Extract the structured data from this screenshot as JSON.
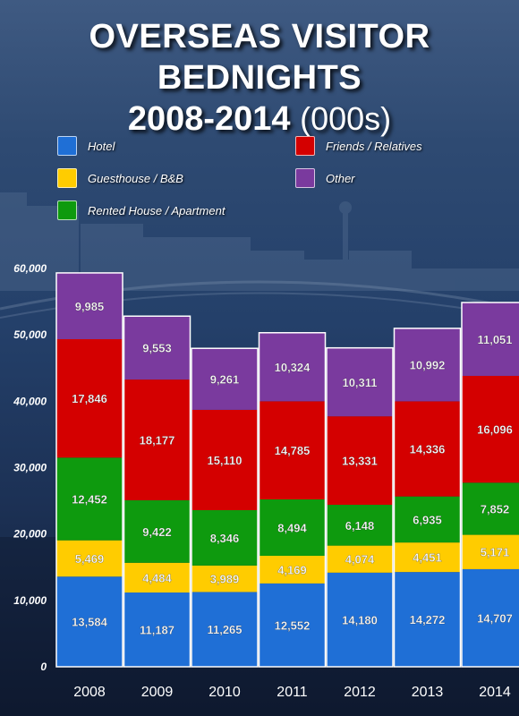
{
  "title": {
    "line1": "OVERSEAS VISITOR BEDNIGHTS",
    "line2": "2008-2014",
    "unit": "(000s)"
  },
  "legend": [
    {
      "name": "Hotel",
      "color": "#1f6fd6"
    },
    {
      "name": "Guesthouse / B&B",
      "color": "#ffcc00"
    },
    {
      "name": "Rented House / Apartment",
      "color": "#0e9a0e"
    },
    {
      "name": "Friends / Relatives",
      "color": "#d40000"
    },
    {
      "name": "Other",
      "color": "#7a3a9e"
    }
  ],
  "chart_data": {
    "type": "bar",
    "stacked": true,
    "categories": [
      "2008",
      "2009",
      "2010",
      "2011",
      "2012",
      "2013",
      "2014"
    ],
    "series": [
      {
        "name": "Hotel",
        "color": "#1f6fd6",
        "values": [
          13584,
          11187,
          11265,
          12552,
          14180,
          14272,
          14707
        ],
        "labels": [
          "13,584",
          "11,187",
          "11,265",
          "12,552",
          "14,180",
          "14,272",
          "14,707"
        ]
      },
      {
        "name": "Guesthouse / B&B",
        "color": "#ffcc00",
        "values": [
          5469,
          4484,
          3989,
          4169,
          4074,
          4451,
          5171
        ],
        "labels": [
          "5,469",
          "4,484",
          "3,989",
          "4,169",
          "4,074",
          "4,451",
          "5,171"
        ]
      },
      {
        "name": "Rented House / Apartment",
        "color": "#0e9a0e",
        "values": [
          12452,
          9422,
          8346,
          8494,
          6148,
          6935,
          7852
        ],
        "labels": [
          "12,452",
          "9,422",
          "8,346",
          "8,494",
          "6,148",
          "6,935",
          "7,852"
        ]
      },
      {
        "name": "Friends / Relatives",
        "color": "#d40000",
        "values": [
          17846,
          18177,
          15110,
          14785,
          13331,
          14336,
          16096
        ],
        "labels": [
          "17,846",
          "18,177",
          "15,110",
          "14,785",
          "13,331",
          "14,336",
          "16,096"
        ]
      },
      {
        "name": "Other",
        "color": "#7a3a9e",
        "values": [
          9985,
          9553,
          9261,
          10324,
          10311,
          10992,
          11051
        ],
        "labels": [
          "9,985",
          "9,553",
          "9,261",
          "10,324",
          "10,311",
          "10,992",
          "11,051"
        ]
      }
    ],
    "yticks": [
      0,
      10000,
      20000,
      30000,
      40000,
      50000,
      60000
    ],
    "ytick_labels": [
      "0",
      "10,000",
      "20,000",
      "30,000",
      "40,000",
      "50,000",
      "60,000"
    ],
    "ylim": [
      0,
      60000
    ],
    "grid": false,
    "legend_position": "top"
  }
}
